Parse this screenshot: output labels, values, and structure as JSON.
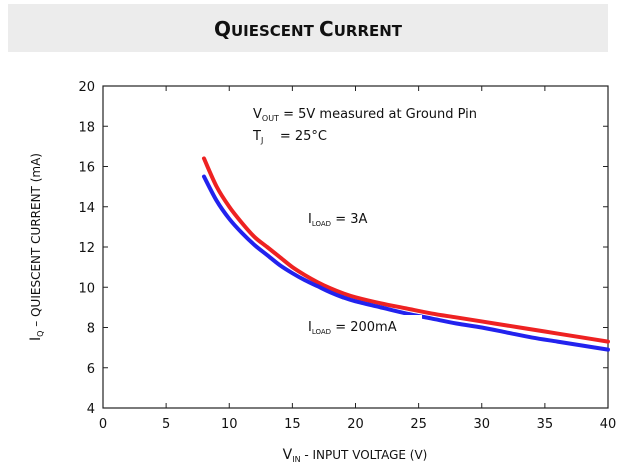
{
  "title": {
    "main_q": "Q",
    "main_rest1": "UIESCENT ",
    "main_c": "C",
    "main_rest2": "URRENT"
  },
  "chart_data": {
    "type": "line",
    "title": "QUIESCENT CURRENT",
    "xlabel": {
      "main": "V",
      "sub": "IN",
      "rest": " - INPUT VOLTAGE (V)"
    },
    "ylabel": {
      "main": "I",
      "sub": "Q",
      "rest": " – QUIESCENT CURRENT (mA)"
    },
    "xlim": [
      0,
      40
    ],
    "ylim": [
      4,
      20
    ],
    "xticks": [
      0,
      5,
      10,
      15,
      20,
      25,
      30,
      35,
      40
    ],
    "yticks": [
      4,
      6,
      8,
      10,
      12,
      14,
      16,
      18,
      20
    ],
    "grid": false,
    "annotations": [
      {
        "key": "vout",
        "pre": "V",
        "sub": "OUT",
        "post": " = 5V measured at Ground Pin"
      },
      {
        "key": "tj",
        "pre": "T",
        "sub": "J",
        "post": "    = 25°C"
      }
    ],
    "series": [
      {
        "name": "I_LOAD = 3A",
        "label_pre": "I",
        "label_sub": "LOAD",
        "label_post": " = 3A",
        "color": "#ee2222",
        "x": [
          8,
          9,
          10,
          11,
          12,
          13,
          14,
          15,
          16,
          17,
          18,
          19,
          20,
          22,
          24,
          26,
          28,
          30,
          32,
          34,
          36,
          38,
          40
        ],
        "y": [
          16.4,
          15.0,
          14.0,
          13.2,
          12.5,
          12.0,
          11.5,
          11.0,
          10.6,
          10.25,
          9.95,
          9.7,
          9.5,
          9.2,
          8.95,
          8.7,
          8.5,
          8.3,
          8.1,
          7.9,
          7.7,
          7.5,
          7.3
        ]
      },
      {
        "name": "I_LOAD = 200mA",
        "label_pre": "I",
        "label_sub": "LOAD",
        "label_post": " = 200mA",
        "color": "#2222ee",
        "x": [
          8,
          9,
          10,
          11,
          12,
          13,
          14,
          15,
          16,
          17,
          18,
          19,
          20,
          22,
          24,
          26,
          28,
          30,
          32,
          34,
          36,
          38,
          40
        ],
        "y": [
          15.5,
          14.3,
          13.4,
          12.7,
          12.1,
          11.6,
          11.1,
          10.7,
          10.35,
          10.05,
          9.75,
          9.5,
          9.3,
          9.0,
          8.7,
          8.45,
          8.2,
          8.0,
          7.75,
          7.5,
          7.3,
          7.1,
          6.9
        ]
      }
    ]
  }
}
